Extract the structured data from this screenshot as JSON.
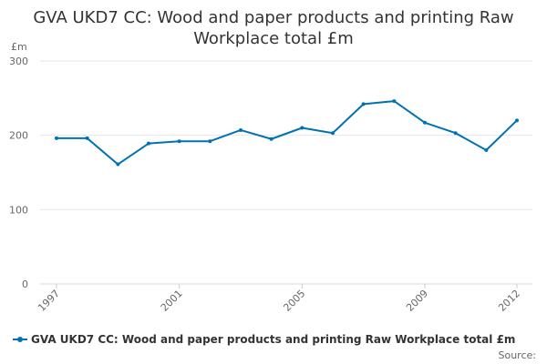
{
  "colors": {
    "series": "#0072b2",
    "grid": "#e6e6e6",
    "axis_text": "#666666",
    "title": "#333333"
  },
  "chart_data": {
    "type": "line",
    "title_lines": [
      "GVA UKD7 CC: Wood and paper products and printing Raw",
      "Workplace total £m"
    ],
    "y_unit": "£m",
    "x": [
      1997,
      1998,
      1999,
      2000,
      2001,
      2002,
      2003,
      2004,
      2005,
      2006,
      2007,
      2008,
      2009,
      2010,
      2011,
      2012
    ],
    "x_tick_labels": [
      "1997",
      "2001",
      "2005",
      "2009",
      "2012"
    ],
    "ylim": [
      0,
      300
    ],
    "y_ticks": [
      0,
      100,
      200,
      300
    ],
    "grid": "horizontal",
    "legend_position": "bottom",
    "series": [
      {
        "name": "GVA UKD7 CC: Wood and paper products and printing Raw Workplace total £m",
        "values": [
          196,
          196,
          161,
          189,
          192,
          192,
          207,
          195,
          210,
          203,
          242,
          246,
          217,
          203,
          180,
          220
        ]
      }
    ],
    "source_label": "Source:"
  }
}
